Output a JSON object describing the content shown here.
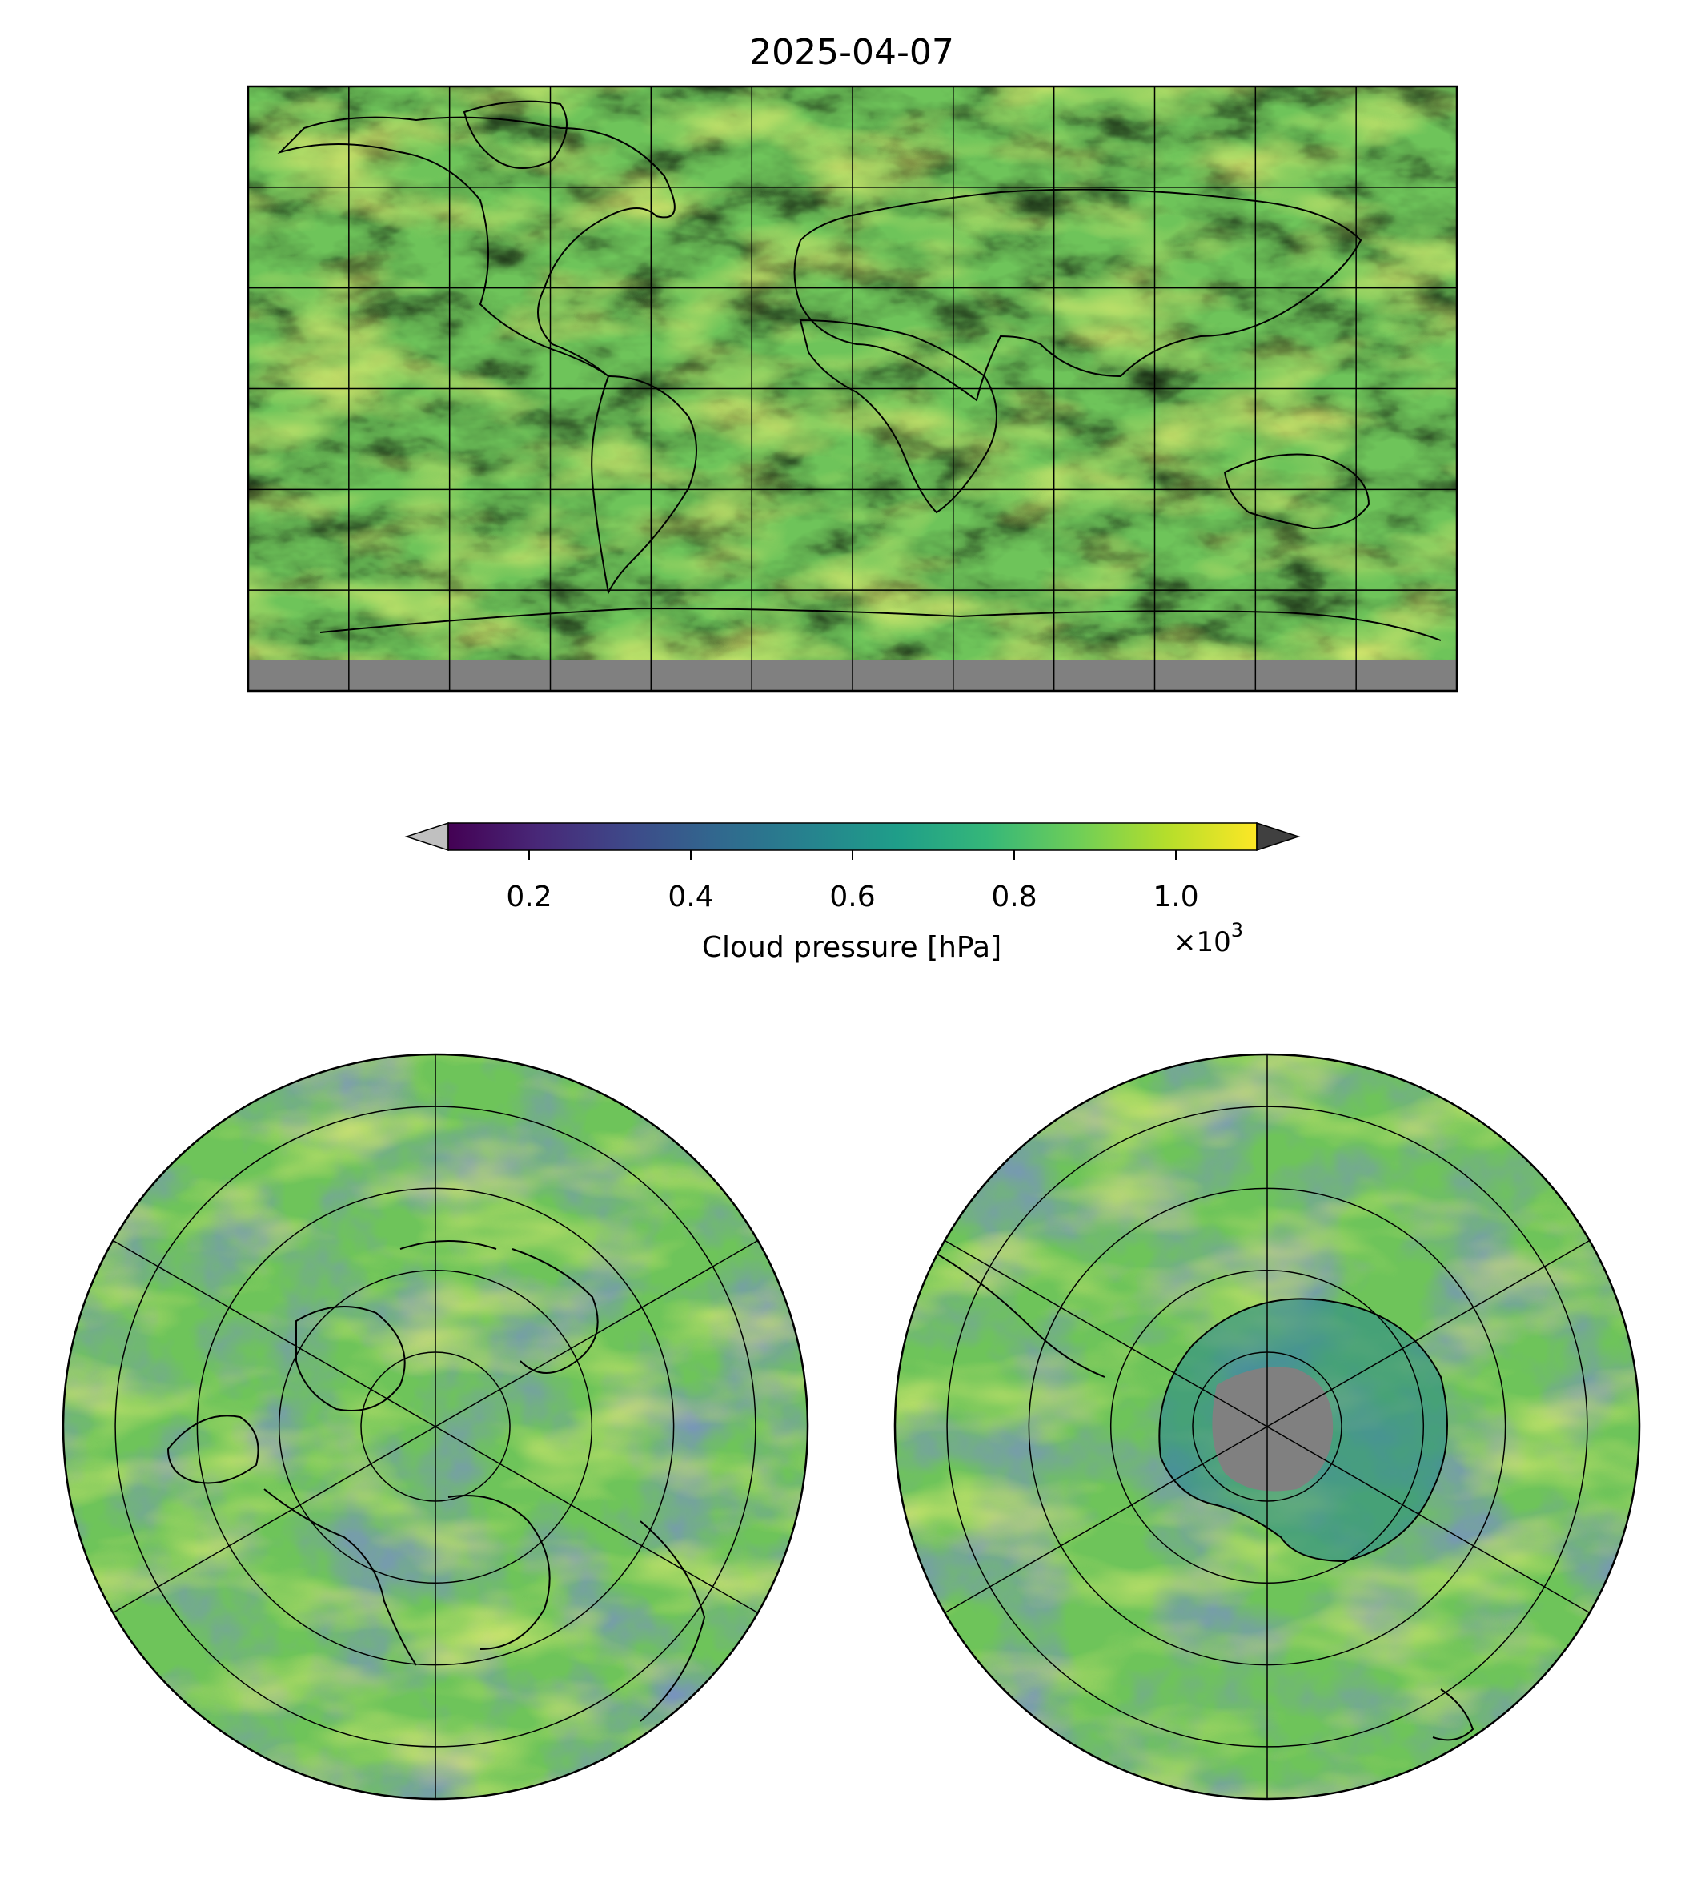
{
  "title": "2025-04-07",
  "colorbar": {
    "label": "Cloud pressure [hPa]",
    "multiplier_prefix": "×10",
    "multiplier_exponent": "3",
    "ticks": [
      "0.2",
      "0.4",
      "0.6",
      "0.8",
      "1.0"
    ],
    "tick_values": [
      0.2,
      0.4,
      0.6,
      0.8,
      1.0
    ],
    "range": [
      0.1,
      1.1
    ],
    "extend": "both",
    "under_color": "#c0c0c0",
    "over_color": "#404040",
    "colormap": "viridis",
    "colormap_stops": [
      "#440154",
      "#482878",
      "#3e4989",
      "#31688e",
      "#26828e",
      "#1f9e89",
      "#35b779",
      "#6ece58",
      "#b5de2b",
      "#fde725"
    ]
  },
  "maps": {
    "global": {
      "projection": "plate-carree",
      "lon_range": [
        -180,
        180
      ],
      "lat_range": [
        -90,
        90
      ],
      "gridline_spacing_deg": 30,
      "nodata_color": "#808080"
    },
    "north_polar": {
      "projection": "north-polar-stereographic",
      "boundary_lat": 30
    },
    "south_polar": {
      "projection": "south-polar-stereographic",
      "boundary_lat": -30
    }
  }
}
